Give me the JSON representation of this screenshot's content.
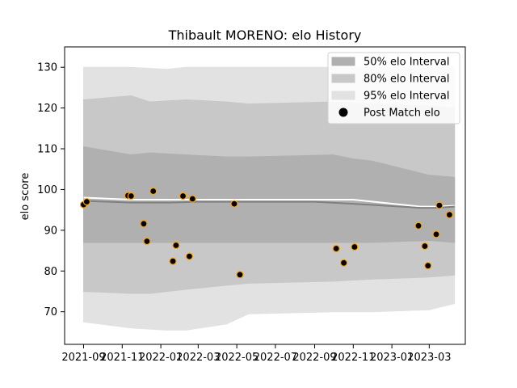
{
  "chart_data": {
    "type": "line",
    "title": "Thibault MORENO: elo History",
    "xlabel": "",
    "ylabel": "elo score",
    "ylim": [
      62,
      135
    ],
    "xlim": [
      "2021-08-02",
      "2023-04-27"
    ],
    "x_ticks": [
      "2021-09",
      "2021-11",
      "2022-01",
      "2022-03",
      "2022-05",
      "2022-07",
      "2022-09",
      "2022-11",
      "2023-01",
      "2023-03"
    ],
    "y_ticks": [
      70,
      80,
      90,
      100,
      110,
      120,
      130
    ],
    "grid": false,
    "legend_position": "top-right",
    "legend": [
      {
        "label": "50% elo Interval",
        "kind": "band",
        "color": "#b0b0b0"
      },
      {
        "label": "80% elo Interval",
        "kind": "band",
        "color": "#c8c8c8"
      },
      {
        "label": "95% elo Interval",
        "kind": "band",
        "color": "#e2e2e2"
      },
      {
        "label": "Post Match elo",
        "kind": "marker",
        "color": "#000000"
      }
    ],
    "colors": {
      "band50": "#b0b0b0",
      "band80": "#c8c8c8",
      "band95": "#e2e2e2",
      "mean_line": "#ffffff",
      "median_line": "#808080",
      "marker_fill": "#000000",
      "marker_edge": "#ffa500"
    },
    "series": [
      {
        "kind": "band95",
        "x": [
          "2021-09-01",
          "2021-11-15",
          "2022-01-10",
          "2022-02-10",
          "2022-04-15",
          "2022-05-20",
          "2022-10-01",
          "2022-12-01",
          "2023-03-01",
          "2023-04-10"
        ],
        "upper": [
          130,
          130,
          129.5,
          130,
          130,
          130,
          130,
          130,
          130,
          130
        ],
        "lower": [
          67.5,
          66,
          65.5,
          65.5,
          67,
          69.5,
          70,
          70,
          70.5,
          72
        ]
      },
      {
        "kind": "band80",
        "x": [
          "2021-09-01",
          "2021-11-15",
          "2021-12-15",
          "2022-02-10",
          "2022-04-15",
          "2022-05-20",
          "2022-10-01",
          "2022-12-01",
          "2023-03-01",
          "2023-04-10"
        ],
        "upper": [
          122,
          123,
          121.5,
          122,
          121.5,
          121,
          121.5,
          121,
          120.5,
          120
        ],
        "lower": [
          75,
          74.5,
          74.5,
          75.5,
          76.5,
          77,
          77.5,
          78,
          78.5,
          79
        ]
      },
      {
        "kind": "band50",
        "x": [
          "2021-09-01",
          "2021-11-15",
          "2021-12-15",
          "2022-02-10",
          "2022-04-15",
          "2022-05-20",
          "2022-10-01",
          "2022-11-01",
          "2022-12-01",
          "2023-03-01",
          "2023-04-10"
        ],
        "upper": [
          110.5,
          108.5,
          109,
          108.5,
          108,
          108,
          108.5,
          107.5,
          107,
          103.5,
          103
        ],
        "lower": [
          87,
          87,
          87,
          87,
          87,
          87,
          87,
          87,
          87,
          87.5,
          87
        ]
      },
      {
        "name": "mean",
        "kind": "mean_line",
        "x": [
          "2021-09-01",
          "2021-11-15",
          "2022-01-15",
          "2022-03-01",
          "2022-04-27",
          "2022-09-01",
          "2022-11-01",
          "2023-02-15",
          "2023-03-10",
          "2023-04-10"
        ],
        "y": [
          98,
          97.5,
          97.5,
          97.5,
          97.5,
          97.5,
          97.5,
          95.8,
          95.8,
          96
        ]
      },
      {
        "name": "median",
        "kind": "median_line",
        "x": [
          "2021-09-01",
          "2021-11-15",
          "2022-01-15",
          "2022-03-01",
          "2022-04-27",
          "2022-09-01",
          "2022-11-01",
          "2023-02-15",
          "2023-03-10",
          "2023-04-10"
        ],
        "y": [
          97.2,
          96.8,
          96.8,
          97,
          97,
          97,
          96.5,
          95.5,
          95.5,
          95.8
        ]
      },
      {
        "name": "Post Match elo",
        "kind": "points",
        "x": [
          "2021-09-01",
          "2021-09-06",
          "2021-11-10",
          "2021-11-15",
          "2021-12-05",
          "2021-12-10",
          "2021-12-20",
          "2022-01-20",
          "2022-01-25",
          "2022-02-05",
          "2022-02-15",
          "2022-02-20",
          "2022-04-27",
          "2022-05-06",
          "2022-10-05",
          "2022-10-17",
          "2022-11-03",
          "2023-02-12",
          "2023-02-22",
          "2023-02-27",
          "2023-03-12",
          "2023-03-17",
          "2023-04-02"
        ],
        "y": [
          96.3,
          97.0,
          98.5,
          98.4,
          91.6,
          87.3,
          99.6,
          82.4,
          86.3,
          98.4,
          83.6,
          97.7,
          96.5,
          79.1,
          85.5,
          82.0,
          85.9,
          91.1,
          86.1,
          81.3,
          89.0,
          96.1,
          93.8
        ]
      }
    ]
  }
}
